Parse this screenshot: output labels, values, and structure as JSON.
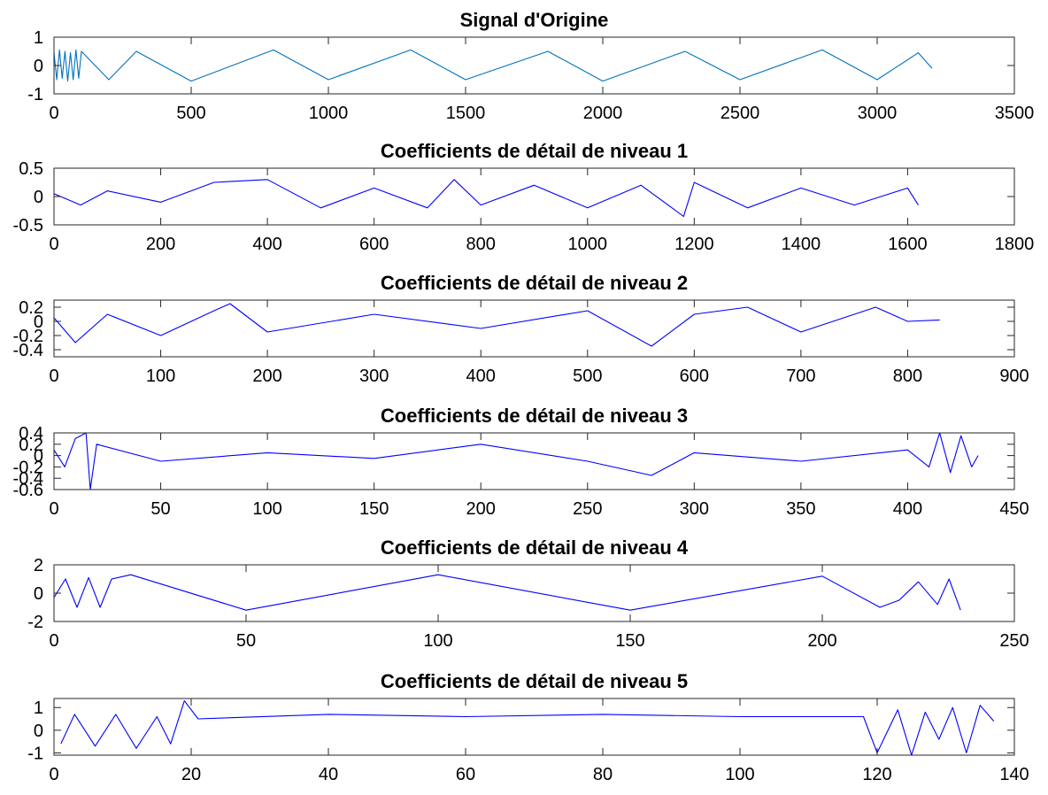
{
  "colors": {
    "original": "#0072bd",
    "detail": "#0000ff",
    "axes": "#262626"
  },
  "chart_data": [
    {
      "type": "line",
      "title": "Signal d'Origine",
      "xlim": [
        0,
        3500
      ],
      "ylim": [
        -1,
        1
      ],
      "xticks": [
        0,
        500,
        1000,
        1500,
        2000,
        2500,
        3000,
        3500
      ],
      "yticks": [
        "-1",
        "0",
        "1"
      ],
      "series": [
        {
          "points": [
            [
              0,
              0.45
            ],
            [
              10,
              -0.5
            ],
            [
              20,
              0.55
            ],
            [
              30,
              -0.45
            ],
            [
              40,
              0.5
            ],
            [
              50,
              -0.55
            ],
            [
              60,
              0.45
            ],
            [
              70,
              -0.5
            ],
            [
              80,
              0.55
            ],
            [
              90,
              -0.45
            ],
            [
              100,
              0.5
            ],
            [
              200,
              -0.5
            ],
            [
              300,
              0.5
            ],
            [
              500,
              -0.55
            ],
            [
              800,
              0.55
            ],
            [
              1000,
              -0.5
            ],
            [
              1300,
              0.55
            ],
            [
              1500,
              -0.5
            ],
            [
              1800,
              0.5
            ],
            [
              2000,
              -0.55
            ],
            [
              2300,
              0.5
            ],
            [
              2500,
              -0.5
            ],
            [
              2800,
              0.55
            ],
            [
              3000,
              -0.5
            ],
            [
              3150,
              0.45
            ],
            [
              3200,
              -0.1
            ]
          ]
        }
      ],
      "color": "#0072bd"
    },
    {
      "type": "line",
      "title": "Coefficients de détail de niveau 1",
      "xlim": [
        0,
        1800
      ],
      "ylim": [
        -0.5,
        0.5
      ],
      "xticks": [
        0,
        200,
        400,
        600,
        800,
        1000,
        1200,
        1400,
        1600,
        1800
      ],
      "yticks": [
        "-0.5",
        "0",
        "0.5"
      ],
      "series": [
        {
          "points": [
            [
              0,
              0.05
            ],
            [
              50,
              -0.15
            ],
            [
              100,
              0.1
            ],
            [
              200,
              -0.1
            ],
            [
              300,
              0.25
            ],
            [
              400,
              0.3
            ],
            [
              500,
              -0.2
            ],
            [
              600,
              0.15
            ],
            [
              700,
              -0.2
            ],
            [
              750,
              0.3
            ],
            [
              800,
              -0.15
            ],
            [
              900,
              0.2
            ],
            [
              1000,
              -0.2
            ],
            [
              1100,
              0.2
            ],
            [
              1180,
              -0.35
            ],
            [
              1200,
              0.25
            ],
            [
              1300,
              -0.2
            ],
            [
              1400,
              0.15
            ],
            [
              1500,
              -0.15
            ],
            [
              1600,
              0.15
            ],
            [
              1620,
              -0.15
            ]
          ]
        }
      ],
      "color": "#0000ff"
    },
    {
      "type": "line",
      "title": "Coefficients de détail de niveau 2",
      "xlim": [
        0,
        900
      ],
      "ylim": [
        -0.5,
        0.3
      ],
      "xticks": [
        0,
        100,
        200,
        300,
        400,
        500,
        600,
        700,
        800,
        900
      ],
      "yticks": [
        "-0.4",
        "-0.2",
        "0",
        "0.2"
      ],
      "series": [
        {
          "points": [
            [
              0,
              0.05
            ],
            [
              20,
              -0.3
            ],
            [
              50,
              0.1
            ],
            [
              100,
              -0.2
            ],
            [
              150,
              0.15
            ],
            [
              165,
              0.25
            ],
            [
              200,
              -0.15
            ],
            [
              300,
              0.1
            ],
            [
              400,
              -0.1
            ],
            [
              500,
              0.15
            ],
            [
              560,
              -0.35
            ],
            [
              600,
              0.1
            ],
            [
              650,
              0.2
            ],
            [
              700,
              -0.15
            ],
            [
              770,
              0.2
            ],
            [
              800,
              0
            ],
            [
              830,
              0.02
            ]
          ]
        }
      ],
      "color": "#0000ff"
    },
    {
      "type": "line",
      "title": "Coefficients de détail de niveau 3",
      "xlim": [
        0,
        450
      ],
      "ylim": [
        -0.6,
        0.4
      ],
      "xticks": [
        0,
        50,
        100,
        150,
        200,
        250,
        300,
        350,
        400,
        450
      ],
      "yticks": [
        "-0.6",
        "-0.4",
        "-0.2",
        "0",
        "0.2",
        "0.4"
      ],
      "series": [
        {
          "points": [
            [
              0,
              0.1
            ],
            [
              5,
              -0.2
            ],
            [
              10,
              0.3
            ],
            [
              15,
              0.4
            ],
            [
              17,
              -0.6
            ],
            [
              20,
              0.2
            ],
            [
              50,
              -0.1
            ],
            [
              100,
              0.05
            ],
            [
              150,
              -0.05
            ],
            [
              200,
              0.2
            ],
            [
              250,
              -0.1
            ],
            [
              280,
              -0.35
            ],
            [
              300,
              0.05
            ],
            [
              350,
              -0.1
            ],
            [
              400,
              0.1
            ],
            [
              410,
              -0.2
            ],
            [
              415,
              0.4
            ],
            [
              420,
              -0.3
            ],
            [
              425,
              0.35
            ],
            [
              430,
              -0.2
            ],
            [
              433,
              0
            ]
          ]
        }
      ],
      "color": "#0000ff"
    },
    {
      "type": "line",
      "title": "Coefficients de détail de niveau 4",
      "xlim": [
        0,
        250
      ],
      "ylim": [
        -2,
        2
      ],
      "xticks": [
        0,
        50,
        100,
        150,
        200,
        250
      ],
      "yticks": [
        "-2",
        "0",
        "2"
      ],
      "series": [
        {
          "points": [
            [
              0,
              -0.3
            ],
            [
              3,
              1
            ],
            [
              6,
              -1
            ],
            [
              9,
              1.1
            ],
            [
              12,
              -1
            ],
            [
              15,
              1
            ],
            [
              20,
              1.3
            ],
            [
              50,
              -1.2
            ],
            [
              100,
              1.3
            ],
            [
              150,
              -1.2
            ],
            [
              200,
              1.2
            ],
            [
              215,
              -1
            ],
            [
              220,
              -0.5
            ],
            [
              225,
              0.8
            ],
            [
              230,
              -0.8
            ],
            [
              233,
              1
            ],
            [
              236,
              -1.2
            ]
          ]
        }
      ],
      "color": "#0000ff"
    },
    {
      "type": "line",
      "title": "Coefficients de détail de niveau 5",
      "xlim": [
        0,
        140
      ],
      "ylim": [
        -1.1,
        1.4
      ],
      "xticks": [
        0,
        20,
        40,
        60,
        80,
        100,
        120,
        140
      ],
      "yticks": [
        "-1",
        "0",
        "1"
      ],
      "series": [
        {
          "points": [
            [
              1,
              -0.6
            ],
            [
              3,
              0.7
            ],
            [
              6,
              -0.7
            ],
            [
              9,
              0.7
            ],
            [
              12,
              -0.8
            ],
            [
              15,
              0.6
            ],
            [
              17,
              -0.6
            ],
            [
              19,
              1.3
            ],
            [
              21,
              0.5
            ],
            [
              40,
              0.7
            ],
            [
              60,
              0.6
            ],
            [
              80,
              0.7
            ],
            [
              100,
              0.6
            ],
            [
              118,
              0.6
            ],
            [
              120,
              -1
            ],
            [
              123,
              0.9
            ],
            [
              125,
              -1.1
            ],
            [
              127,
              0.8
            ],
            [
              129,
              -0.4
            ],
            [
              131,
              1
            ],
            [
              133,
              -1
            ],
            [
              135,
              1.1
            ],
            [
              137,
              0.4
            ]
          ]
        }
      ],
      "color": "#0000ff"
    }
  ]
}
